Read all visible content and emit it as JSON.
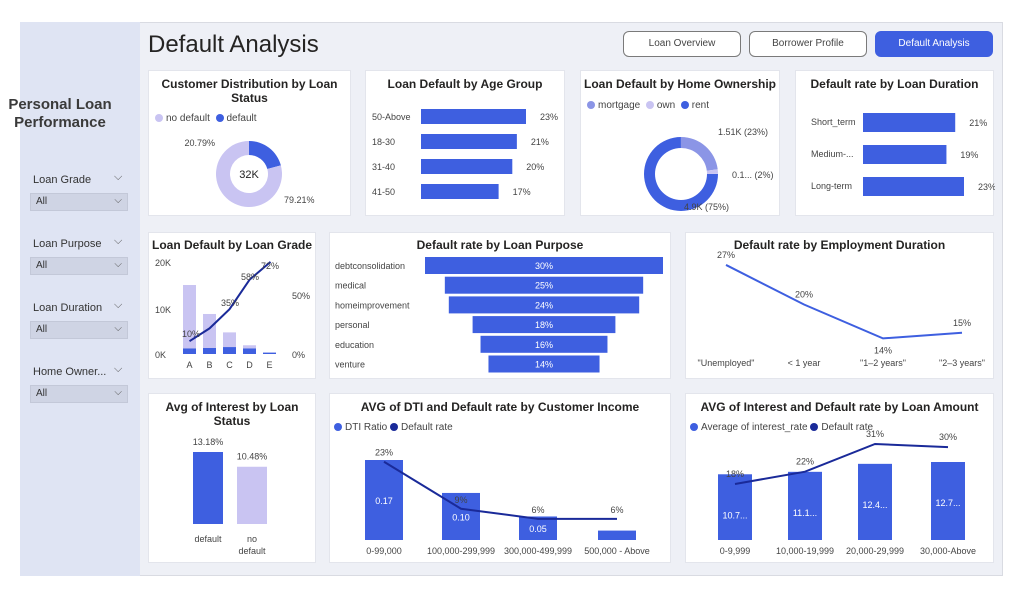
{
  "sidebar": {
    "title_line1": "Personal Loan",
    "title_line2": "Performance",
    "filters": [
      {
        "label": "Loan Grade",
        "value": "All"
      },
      {
        "label": "Loan Purpose",
        "value": "All"
      },
      {
        "label": "Loan Duration",
        "value": "All"
      },
      {
        "label": "Home Owner...",
        "value": "All"
      }
    ]
  },
  "header": {
    "title": "Default Analysis",
    "nav": [
      "Loan Overview",
      "Borrower Profile",
      "Default Analysis"
    ],
    "active_nav": "Default Analysis"
  },
  "colors": {
    "accent": "#3e5fe0",
    "light": "#c9c4f2",
    "dark_line": "#1a2a99"
  },
  "chart_data": [
    {
      "id": "dist",
      "type": "pie",
      "title_line1": "Customer Distribution by Loan",
      "title_line2": "Status",
      "legend": [
        "no default",
        "default"
      ],
      "slices": [
        {
          "label": "no default",
          "value": 79.21
        },
        {
          "label": "default",
          "value": 20.79
        }
      ],
      "labels": [
        "20.79%",
        "79.21%"
      ],
      "center_label": "32K"
    },
    {
      "id": "age",
      "type": "bar",
      "title": "Loan Default by Age Group",
      "categories": [
        "50-Above",
        "18-30",
        "31-40",
        "41-50"
      ],
      "values": [
        23,
        21,
        20,
        17
      ],
      "labels": [
        "23%",
        "21%",
        "20%",
        "17%"
      ]
    },
    {
      "id": "home",
      "type": "pie",
      "title": "Loan Default by Home Ownership",
      "legend": [
        "mortgage",
        "own",
        "rent"
      ],
      "slices": [
        {
          "label": "mortgage",
          "value": 23
        },
        {
          "label": "own",
          "value": 2
        },
        {
          "label": "rent",
          "value": 75
        }
      ],
      "labels": [
        "1.51K (23%)",
        "0.1... (2%)",
        "4.9K (75%)"
      ]
    },
    {
      "id": "duration",
      "type": "bar",
      "title": "Default rate by Loan Duration",
      "categories": [
        "Short_term",
        "Medium-...",
        "Long-term"
      ],
      "values": [
        21,
        19,
        23
      ],
      "labels": [
        "21%",
        "19%",
        "23%"
      ]
    },
    {
      "id": "grade",
      "type": "bar",
      "title": "Loan Default by Loan Grade",
      "categories": [
        "A",
        "B",
        "C",
        "D",
        "E"
      ],
      "left_ticks": [
        "20K",
        "10K",
        "0K"
      ],
      "right_ticks": [
        "50%",
        "0%"
      ],
      "series": [
        {
          "values": [
            15000,
            8700,
            4700,
            1900,
            300
          ]
        },
        {
          "values": [
            1200,
            1300,
            1500,
            1200,
            300
          ]
        },
        {
          "values": [
            10,
            20,
            35,
            58,
            72
          ]
        }
      ],
      "labels": [
        "10%",
        "35%",
        "58%",
        "72%"
      ]
    },
    {
      "id": "purpose",
      "type": "bar",
      "title": "Default rate by Loan Purpose",
      "categories": [
        "debtconsolidation",
        "medical",
        "homeimprovement",
        "personal",
        "education",
        "venture"
      ],
      "values": [
        30,
        25,
        24,
        18,
        16,
        14
      ],
      "labels": [
        "30%",
        "25%",
        "24%",
        "18%",
        "16%",
        "14%"
      ]
    },
    {
      "id": "employment",
      "type": "line",
      "title": "Default rate by Employment Duration",
      "categories": [
        "\"Unemployed\"",
        "< 1 year",
        "\"1–2 years\"",
        "\"2–3 years\""
      ],
      "values": [
        27,
        20,
        14,
        15
      ],
      "labels": [
        "27%",
        "20%",
        "14%",
        "15%"
      ]
    },
    {
      "id": "interest_status",
      "type": "bar",
      "title_line1": "Avg of Interest by Loan",
      "title_line2": "Status",
      "categories": [
        "default",
        "no default"
      ],
      "values": [
        13.18,
        10.48
      ],
      "labels": [
        "13.18%",
        "10.48%"
      ]
    },
    {
      "id": "dti",
      "type": "bar",
      "title": "AVG of DTI and Default rate by Customer Income",
      "legend": [
        "DTI Ratio",
        "Default rate"
      ],
      "categories": [
        "0-99,000",
        "100,000-299,999",
        "300,000-499,999",
        "500,000 - Above"
      ],
      "series": [
        {
          "name": "DTI Ratio",
          "values": [
            0.17,
            0.1,
            0.05,
            0.02
          ]
        },
        {
          "name": "Default rate",
          "values": [
            23,
            9,
            6,
            6
          ]
        }
      ],
      "bar_labels": [
        "0.17",
        "0.10",
        "0.05",
        ""
      ],
      "line_labels": [
        "23%",
        "9%",
        "6%",
        "6%"
      ]
    },
    {
      "id": "amount",
      "type": "bar",
      "title": "AVG of Interest and Default rate by Loan Amount",
      "legend": [
        "Average of interest_rate",
        "Default rate"
      ],
      "categories": [
        "0-9,999",
        "10,000-19,999",
        "20,000-29,999",
        "30,000-Above"
      ],
      "series": [
        {
          "name": "Average of interest_rate",
          "values": [
            10.7,
            11.1,
            12.4,
            12.7
          ]
        },
        {
          "name": "Default rate",
          "values": [
            18,
            22,
            31,
            30
          ]
        }
      ],
      "bar_labels": [
        "10.7...",
        "11.1...",
        "12.4...",
        "12.7..."
      ],
      "line_labels": [
        "18%",
        "22%",
        "31%",
        "30%"
      ]
    }
  ]
}
